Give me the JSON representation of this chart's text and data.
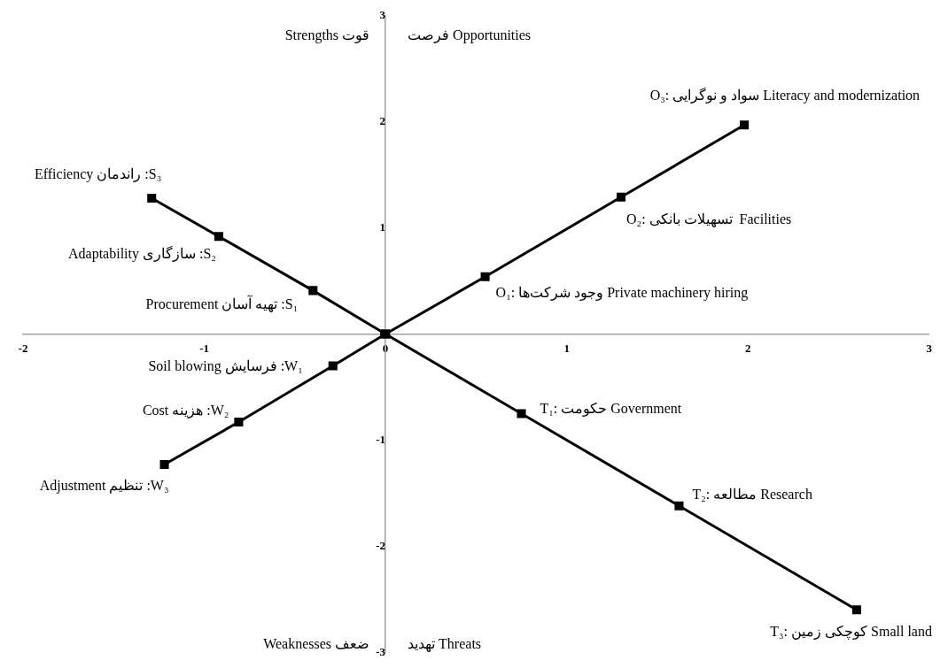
{
  "chart_data": {
    "type": "line",
    "marker": "square",
    "line_style": "solid",
    "grid": false,
    "legend": false,
    "xlim": [
      -2,
      3
    ],
    "xticks": [
      -2,
      -1,
      0,
      1,
      2,
      3
    ],
    "ylim": [
      -3,
      3
    ],
    "yticks": [
      -3,
      -2,
      -1,
      0,
      1,
      2,
      3
    ],
    "series": [
      {
        "color": "#000000",
        "x": [
          -1.29,
          -0.92,
          -0.4,
          0,
          0.75,
          1.62,
          2.6
        ],
        "values": [
          1.28,
          0.92,
          0.41,
          0,
          -0.75,
          -1.62,
          -2.6
        ]
      },
      {
        "color": "#000000",
        "x": [
          -1.22,
          -0.81,
          -0.29,
          0,
          0.55,
          1.3,
          1.98
        ],
        "values": [
          -1.23,
          -0.83,
          -0.3,
          0,
          0.54,
          1.29,
          1.97
        ]
      }
    ],
    "annotations": [
      "Strengths قوت",
      "فرصت Opportunities",
      "Weaknesses ضعف",
      "تهدید Threats",
      {
        "text": "Efficiency راندمان :S₃",
        "x": -1.29,
        "y": 1.28
      },
      {
        "text": "Adaptability سازگاری :S₂",
        "x": -0.92,
        "y": 0.92
      },
      {
        "text": "Procurement تهیه آسان :S₁",
        "x": -0.4,
        "y": 0.41
      },
      {
        "text": "O₃: سواد و نوگرایی Literacy and modernization",
        "x": 1.98,
        "y": 1.97
      },
      {
        "text": "O₂: تسهیلات بانکی  Facilities",
        "x": 1.3,
        "y": 1.29
      },
      {
        "text": "O₁: وجود شرکت‌ها Private machinery hiring",
        "x": 0.55,
        "y": 0.54
      },
      {
        "text": "Soil blowing فرسایش :W₁",
        "x": -0.29,
        "y": -0.3
      },
      {
        "text": "Cost هزینه :W₂",
        "x": -0.81,
        "y": -0.83
      },
      {
        "text": "Adjustment تنظیم :W₃",
        "x": -1.22,
        "y": -1.23
      },
      {
        "text": "T₁: حکومت Government",
        "x": 0.75,
        "y": -0.75
      },
      {
        "text": "T₂: مطالعه Research",
        "x": 1.62,
        "y": -1.62
      },
      {
        "text": "T₃: کوچکی زمین Small land",
        "x": 2.6,
        "y": -2.6
      }
    ]
  }
}
